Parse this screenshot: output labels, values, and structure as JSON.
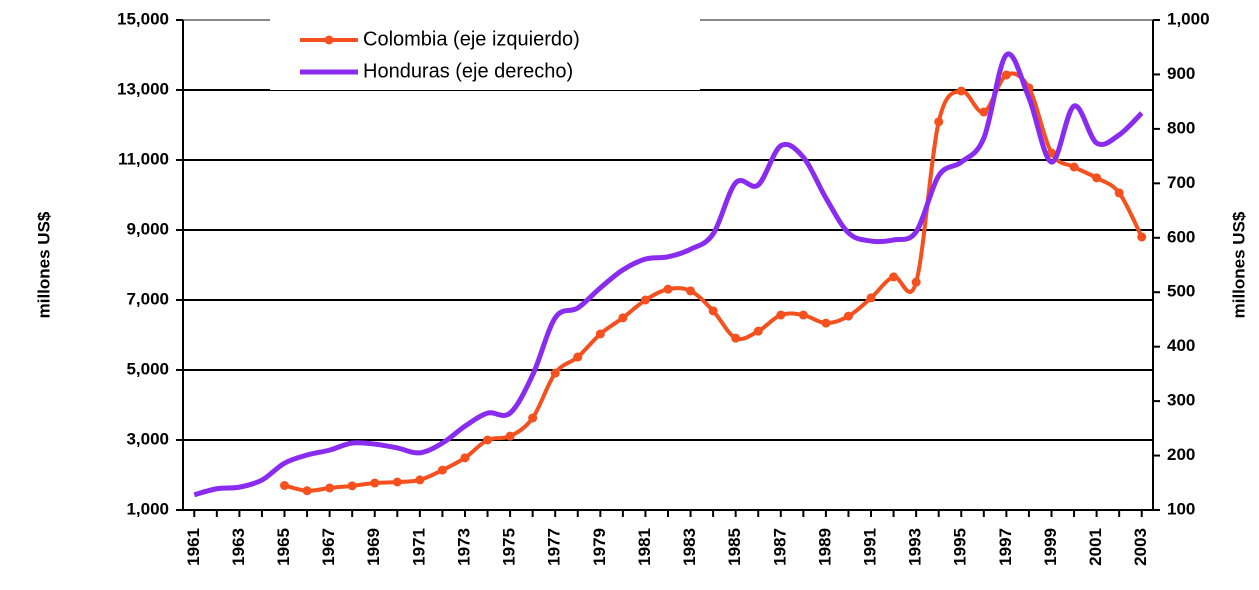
{
  "chart_data": {
    "type": "line",
    "x": [
      1961,
      1962,
      1963,
      1964,
      1965,
      1966,
      1967,
      1968,
      1969,
      1970,
      1971,
      1972,
      1973,
      1974,
      1975,
      1976,
      1977,
      1978,
      1979,
      1980,
      1981,
      1982,
      1983,
      1984,
      1985,
      1986,
      1987,
      1988,
      1989,
      1990,
      1991,
      1992,
      1993,
      1994,
      1995,
      1996,
      1997,
      1998,
      1999,
      2000,
      2001,
      2002,
      2003
    ],
    "xlim": [
      1960.5,
      2003.5
    ],
    "xticks": [
      1961,
      1963,
      1965,
      1967,
      1969,
      1971,
      1973,
      1975,
      1977,
      1979,
      1981,
      1983,
      1985,
      1987,
      1989,
      1991,
      1993,
      1995,
      1997,
      1999,
      2001,
      2003
    ],
    "ylim": [
      1000,
      15000
    ],
    "yticks": [
      {
        "value": 1000,
        "label": "1,000"
      },
      {
        "value": 3000,
        "label": "3,000"
      },
      {
        "value": 5000,
        "label": "5,000"
      },
      {
        "value": 7000,
        "label": "7,000"
      },
      {
        "value": 9000,
        "label": "9,000"
      },
      {
        "value": 11000,
        "label": "11,000"
      },
      {
        "value": 13000,
        "label": "13,000"
      },
      {
        "value": 15000,
        "label": "15,000"
      }
    ],
    "y2lim": [
      100,
      1000
    ],
    "y2ticks": [
      100,
      200,
      300,
      400,
      500,
      600,
      700,
      800,
      900,
      {
        "value": 1000,
        "label": "1,000"
      }
    ],
    "ylabel": "millones US$",
    "y2label": "millones US$",
    "grid": true,
    "series": [
      {
        "name": "Colombia (eje izquierdo)",
        "color": "#f5501e",
        "axis": "y",
        "markers": true,
        "values": [
          null,
          null,
          null,
          null,
          1700,
          1550,
          1630,
          1690,
          1770,
          1800,
          1860,
          2140,
          2490,
          3000,
          3110,
          3630,
          4910,
          5370,
          6030,
          6490,
          7000,
          7310,
          7260,
          6690,
          5910,
          6110,
          6570,
          6570,
          6340,
          6540,
          7060,
          7660,
          7510,
          12090,
          12970,
          12370,
          13430,
          13060,
          11200,
          10800,
          10490,
          10060,
          8800
        ]
      },
      {
        "name": "Honduras (eje derecho)",
        "color": "#8a2cf0",
        "axis": "y2",
        "markers": false,
        "values": [
          128,
          139,
          142,
          155,
          186,
          201,
          210,
          223,
          221,
          214,
          205,
          223,
          254,
          278,
          278,
          348,
          453,
          471,
          508,
          541,
          561,
          565,
          579,
          607,
          701,
          697,
          769,
          748,
          673,
          609,
          594,
          596,
          611,
          714,
          739,
          783,
          936,
          857,
          739,
          842,
          774,
          789,
          829
        ]
      }
    ]
  }
}
